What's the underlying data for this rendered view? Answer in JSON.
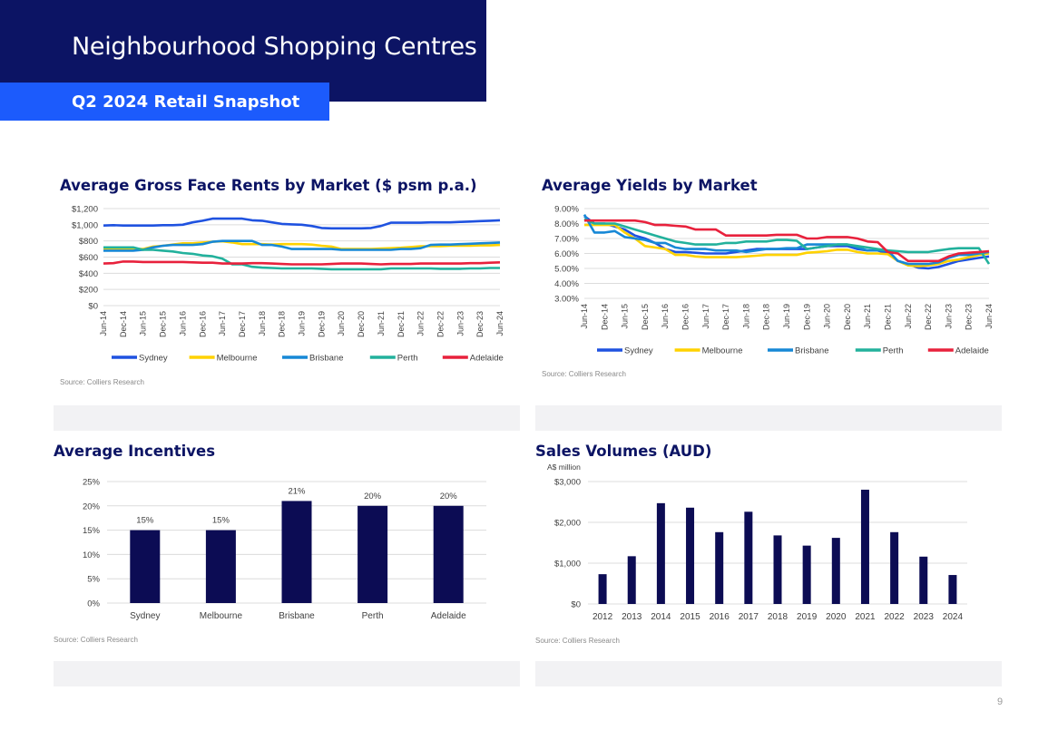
{
  "header": {
    "title": "Neighbourhood Shopping Centres",
    "subtitle": "Q2 2024 Retail Snapshot"
  },
  "page_number": "9",
  "colors": {
    "navy": "#0c1464",
    "blue_band": "#1c5bfc",
    "bar": "#0c0c54",
    "grid": "#dcdcdc"
  },
  "chart_data": [
    {
      "id": "rents",
      "type": "line",
      "title": "Average Gross Face Rents by Market ($ psm p.a.)",
      "source": "Source: Colliers Research",
      "x_ticks": [
        "Jun-14",
        "Dec-14",
        "Jun-15",
        "Dec-15",
        "Jun-16",
        "Dec-16",
        "Jun-17",
        "Dec-17",
        "Jun-18",
        "Dec-18",
        "Jun-19",
        "Dec-19",
        "Jun-20",
        "Dec-20",
        "Jun-21",
        "Dec-21",
        "Jun-22",
        "Dec-22",
        "Jun-23",
        "Dec-23",
        "Jun-24"
      ],
      "x_count": 41,
      "y_ticks": [
        "$0",
        "$200",
        "$400",
        "$600",
        "$800",
        "$1,000",
        "$1,200"
      ],
      "ylim": [
        0,
        1200
      ],
      "grid": true,
      "legend_position": "bottom",
      "series": [
        {
          "name": "Sydney",
          "color": "#1f52e0",
          "values": [
            990,
            995,
            990,
            990,
            990,
            990,
            995,
            995,
            1000,
            1030,
            1050,
            1075,
            1075,
            1075,
            1075,
            1055,
            1050,
            1030,
            1010,
            1005,
            1000,
            985,
            960,
            955,
            955,
            955,
            955,
            960,
            985,
            1025,
            1025,
            1025,
            1025,
            1030,
            1030,
            1030,
            1035,
            1040,
            1045,
            1050,
            1055
          ]
        },
        {
          "name": "Melbourne",
          "color": "#ffd200",
          "values": [
            705,
            705,
            700,
            700,
            700,
            730,
            740,
            755,
            770,
            770,
            780,
            790,
            795,
            780,
            760,
            760,
            760,
            755,
            760,
            760,
            760,
            755,
            740,
            730,
            700,
            700,
            700,
            700,
            705,
            710,
            715,
            725,
            735,
            735,
            735,
            740,
            740,
            740,
            745,
            745,
            750
          ]
        },
        {
          "name": "Brisbane",
          "color": "#1788d6",
          "values": [
            680,
            680,
            680,
            680,
            690,
            720,
            740,
            750,
            750,
            750,
            760,
            790,
            800,
            800,
            800,
            800,
            750,
            750,
            730,
            700,
            700,
            700,
            700,
            700,
            690,
            690,
            690,
            690,
            690,
            690,
            700,
            700,
            710,
            750,
            755,
            755,
            760,
            765,
            770,
            775,
            780
          ]
        },
        {
          "name": "Perth",
          "color": "#22b19c",
          "values": [
            720,
            720,
            720,
            720,
            690,
            690,
            680,
            670,
            650,
            640,
            620,
            610,
            580,
            510,
            510,
            480,
            470,
            465,
            460,
            460,
            460,
            460,
            455,
            450,
            450,
            450,
            450,
            450,
            450,
            460,
            460,
            460,
            460,
            460,
            455,
            455,
            455,
            460,
            460,
            465,
            465
          ]
        },
        {
          "name": "Adelaide",
          "color": "#e8213c",
          "values": [
            520,
            525,
            545,
            545,
            540,
            540,
            540,
            540,
            540,
            535,
            530,
            530,
            520,
            520,
            520,
            525,
            525,
            520,
            515,
            510,
            510,
            510,
            510,
            515,
            520,
            520,
            520,
            515,
            510,
            515,
            515,
            515,
            520,
            520,
            520,
            520,
            520,
            525,
            525,
            530,
            535
          ]
        }
      ]
    },
    {
      "id": "yields",
      "type": "line",
      "title": "Average Yields by Market",
      "source": "Source: Colliers Research",
      "x_ticks": [
        "Jun-14",
        "Dec-14",
        "Jun-15",
        "Dec-15",
        "Jun-16",
        "Dec-16",
        "Jun-17",
        "Dec-17",
        "Jun-18",
        "Dec-18",
        "Jun-19",
        "Dec-19",
        "Jun-20",
        "Dec-20",
        "Jun-21",
        "Dec-21",
        "Jun-22",
        "Dec-22",
        "Jun-23",
        "Dec-23",
        "Jun-24"
      ],
      "x_count": 41,
      "y_ticks": [
        "3.00%",
        "4.00%",
        "5.00%",
        "6.00%",
        "7.00%",
        "8.00%",
        "9.00%"
      ],
      "ylim": [
        3,
        9
      ],
      "grid": true,
      "legend_position": "bottom",
      "series": [
        {
          "name": "Sydney",
          "color": "#1f52e0",
          "values": [
            8.5,
            8.0,
            8.0,
            7.8,
            7.6,
            7.2,
            7.0,
            6.7,
            6.3,
            6.1,
            6.1,
            6.05,
            6.0,
            6.0,
            6.0,
            6.1,
            6.2,
            6.3,
            6.3,
            6.3,
            6.3,
            6.3,
            6.3,
            6.4,
            6.5,
            6.5,
            6.5,
            6.3,
            6.2,
            6.2,
            6.0,
            5.5,
            5.3,
            5.05,
            5.0,
            5.1,
            5.3,
            5.5,
            5.6,
            5.7,
            5.8
          ]
        },
        {
          "name": "Melbourne",
          "color": "#ffd200",
          "values": [
            7.9,
            7.9,
            7.9,
            7.9,
            7.4,
            7.0,
            6.5,
            6.4,
            6.3,
            5.9,
            5.9,
            5.8,
            5.75,
            5.75,
            5.75,
            5.75,
            5.8,
            5.85,
            5.9,
            5.9,
            5.9,
            5.9,
            6.05,
            6.1,
            6.15,
            6.25,
            6.25,
            6.1,
            6.0,
            6.0,
            5.95,
            5.5,
            5.2,
            5.15,
            5.2,
            5.3,
            5.5,
            5.6,
            5.75,
            5.9,
            6.0
          ]
        },
        {
          "name": "Brisbane",
          "color": "#1788d6",
          "values": [
            8.6,
            7.4,
            7.4,
            7.5,
            7.1,
            7.0,
            6.9,
            6.7,
            6.7,
            6.4,
            6.3,
            6.3,
            6.3,
            6.2,
            6.2,
            6.2,
            6.1,
            6.2,
            6.3,
            6.3,
            6.35,
            6.35,
            6.6,
            6.6,
            6.6,
            6.6,
            6.6,
            6.4,
            6.2,
            6.2,
            6.2,
            5.5,
            5.3,
            5.3,
            5.3,
            5.4,
            5.7,
            5.9,
            5.9,
            6.0,
            6.1
          ]
        },
        {
          "name": "Perth",
          "color": "#22b19c",
          "values": [
            8.3,
            8.0,
            8.0,
            8.0,
            7.8,
            7.6,
            7.4,
            7.2,
            7.0,
            6.8,
            6.7,
            6.6,
            6.6,
            6.6,
            6.7,
            6.7,
            6.8,
            6.8,
            6.8,
            6.9,
            6.9,
            6.85,
            6.3,
            6.4,
            6.5,
            6.6,
            6.6,
            6.5,
            6.4,
            6.3,
            6.2,
            6.15,
            6.1,
            6.1,
            6.1,
            6.2,
            6.3,
            6.35,
            6.35,
            6.35,
            5.3
          ]
        },
        {
          "name": "Adelaide",
          "color": "#e8213c",
          "values": [
            8.2,
            8.2,
            8.2,
            8.2,
            8.2,
            8.2,
            8.1,
            7.9,
            7.9,
            7.85,
            7.8,
            7.6,
            7.6,
            7.6,
            7.2,
            7.2,
            7.2,
            7.2,
            7.2,
            7.25,
            7.25,
            7.25,
            7.0,
            7.0,
            7.1,
            7.1,
            7.1,
            7.0,
            6.8,
            6.75,
            6.1,
            6.0,
            5.5,
            5.5,
            5.5,
            5.5,
            5.8,
            6.0,
            6.05,
            6.1,
            6.15
          ]
        }
      ]
    },
    {
      "id": "incentives",
      "type": "bar",
      "title": "Average Incentives",
      "source": "Source: Colliers Research",
      "categories": [
        "Sydney",
        "Melbourne",
        "Brisbane",
        "Perth",
        "Adelaide"
      ],
      "values": [
        15,
        15,
        21,
        20,
        20
      ],
      "data_labels": [
        "15%",
        "15%",
        "21%",
        "20%",
        "20%"
      ],
      "y_ticks": [
        "0%",
        "5%",
        "10%",
        "15%",
        "20%",
        "25%"
      ],
      "ylim": [
        0,
        25
      ],
      "grid": true
    },
    {
      "id": "sales",
      "type": "bar",
      "title": "Sales Volumes (AUD)",
      "ylabel": "A$ million",
      "source": "Source: Colliers Research",
      "categories": [
        "2012",
        "2013",
        "2014",
        "2015",
        "2016",
        "2017",
        "2018",
        "2019",
        "2020",
        "2021",
        "2022",
        "2023",
        "2024"
      ],
      "values": [
        730,
        1170,
        2470,
        2360,
        1760,
        2260,
        1680,
        1430,
        1620,
        2800,
        1760,
        1160,
        710
      ],
      "y_ticks": [
        "$0",
        "$1,000",
        "$2,000",
        "$3,000"
      ],
      "ylim": [
        0,
        3000
      ],
      "grid": true
    }
  ]
}
